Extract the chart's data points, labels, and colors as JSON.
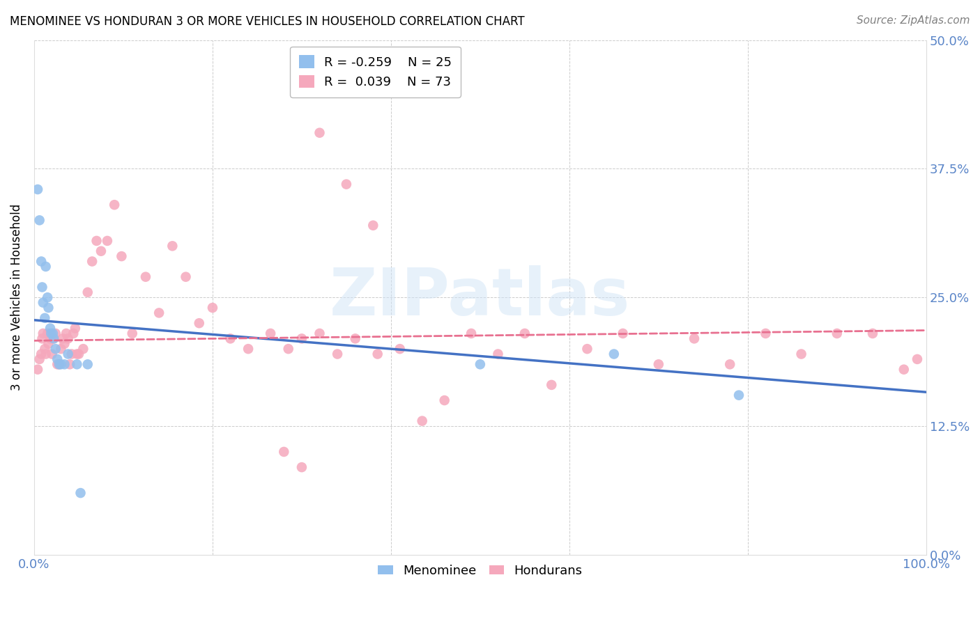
{
  "title": "MENOMINEE VS HONDURAN 3 OR MORE VEHICLES IN HOUSEHOLD CORRELATION CHART",
  "source": "Source: ZipAtlas.com",
  "ylabel": "3 or more Vehicles in Household",
  "watermark": "ZIPatlas",
  "ylim": [
    0.0,
    0.5
  ],
  "xlim": [
    0.0,
    1.0
  ],
  "yticks": [
    0.0,
    0.125,
    0.25,
    0.375,
    0.5
  ],
  "ytick_labels": [
    "",
    "",
    "",
    "",
    ""
  ],
  "right_ytick_labels": [
    "0.0%",
    "12.5%",
    "25.0%",
    "37.5%",
    "50.0%"
  ],
  "xticks": [
    0.0,
    0.2,
    0.4,
    0.6,
    0.8,
    1.0
  ],
  "xtick_labels": [
    "0.0%",
    "",
    "",
    "",
    "",
    "100.0%"
  ],
  "menominee_color": "#92bfed",
  "honduran_color": "#f5a8bc",
  "menominee_line_color": "#4472c4",
  "honduran_line_color": "#e87090",
  "legend_R_menominee": "R = -0.259",
  "legend_N_menominee": "N = 25",
  "legend_R_honduran": "R =  0.039",
  "legend_N_honduran": "N = 73",
  "menominee_x": [
    0.004,
    0.006,
    0.008,
    0.009,
    0.01,
    0.012,
    0.013,
    0.015,
    0.016,
    0.018,
    0.019,
    0.021,
    0.022,
    0.024,
    0.026,
    0.028,
    0.03,
    0.034,
    0.038,
    0.048,
    0.052,
    0.06,
    0.5,
    0.65,
    0.79
  ],
  "menominee_y": [
    0.355,
    0.325,
    0.285,
    0.26,
    0.245,
    0.23,
    0.28,
    0.25,
    0.24,
    0.22,
    0.215,
    0.215,
    0.21,
    0.2,
    0.19,
    0.185,
    0.185,
    0.185,
    0.195,
    0.185,
    0.06,
    0.185,
    0.185,
    0.195,
    0.155
  ],
  "honduran_x": [
    0.004,
    0.006,
    0.008,
    0.009,
    0.01,
    0.012,
    0.013,
    0.015,
    0.016,
    0.018,
    0.02,
    0.022,
    0.024,
    0.026,
    0.028,
    0.03,
    0.032,
    0.034,
    0.036,
    0.038,
    0.04,
    0.042,
    0.044,
    0.046,
    0.048,
    0.05,
    0.055,
    0.06,
    0.065,
    0.07,
    0.075,
    0.082,
    0.09,
    0.098,
    0.11,
    0.125,
    0.14,
    0.155,
    0.17,
    0.185,
    0.2,
    0.22,
    0.24,
    0.265,
    0.285,
    0.3,
    0.32,
    0.34,
    0.36,
    0.385,
    0.41,
    0.435,
    0.46,
    0.49,
    0.52,
    0.55,
    0.58,
    0.62,
    0.66,
    0.7,
    0.74,
    0.78,
    0.82,
    0.86,
    0.9,
    0.94,
    0.975,
    0.99,
    0.28,
    0.3,
    0.32,
    0.35,
    0.38
  ],
  "honduran_y": [
    0.18,
    0.19,
    0.195,
    0.21,
    0.215,
    0.2,
    0.195,
    0.215,
    0.205,
    0.21,
    0.195,
    0.21,
    0.215,
    0.185,
    0.185,
    0.2,
    0.21,
    0.205,
    0.215,
    0.21,
    0.185,
    0.195,
    0.215,
    0.22,
    0.195,
    0.195,
    0.2,
    0.255,
    0.285,
    0.305,
    0.295,
    0.305,
    0.34,
    0.29,
    0.215,
    0.27,
    0.235,
    0.3,
    0.27,
    0.225,
    0.24,
    0.21,
    0.2,
    0.215,
    0.2,
    0.21,
    0.215,
    0.195,
    0.21,
    0.195,
    0.2,
    0.13,
    0.15,
    0.215,
    0.195,
    0.215,
    0.165,
    0.2,
    0.215,
    0.185,
    0.21,
    0.185,
    0.215,
    0.195,
    0.215,
    0.215,
    0.18,
    0.19,
    0.1,
    0.085,
    0.41,
    0.36,
    0.32
  ],
  "menominee_line_x0": 0.0,
  "menominee_line_y0": 0.228,
  "menominee_line_x1": 1.0,
  "menominee_line_y1": 0.158,
  "honduran_line_x0": 0.0,
  "honduran_line_y0": 0.208,
  "honduran_line_x1": 1.0,
  "honduran_line_y1": 0.218
}
